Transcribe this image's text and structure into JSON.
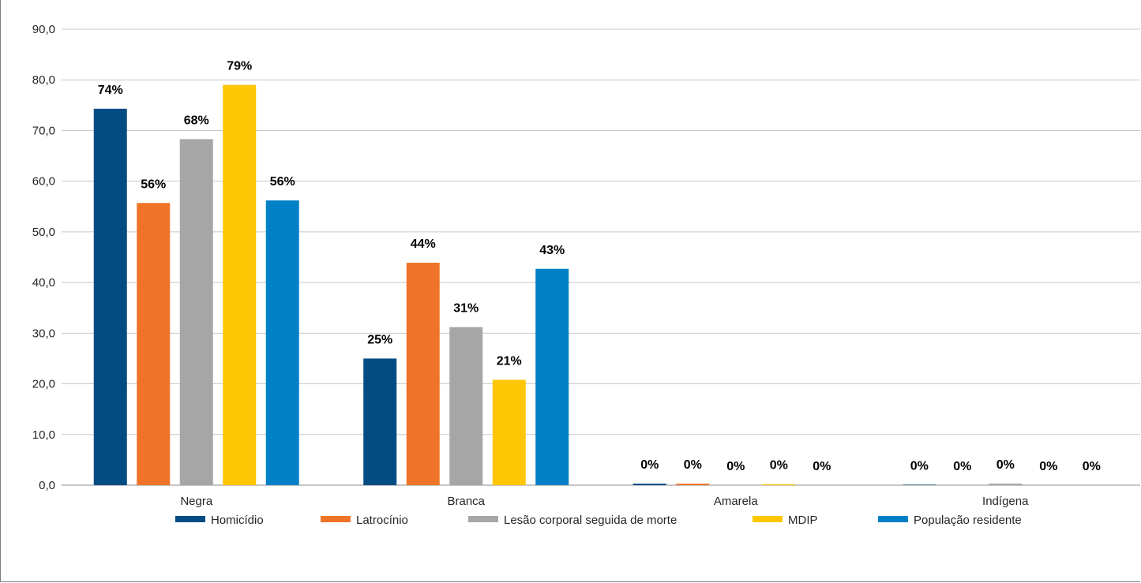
{
  "chart_data": {
    "type": "bar",
    "categories": [
      "Negra",
      "Branca",
      "Amarela",
      "Indígena"
    ],
    "series": [
      {
        "name": "Homicídio",
        "color": "#004C83",
        "values": [
          74.3,
          25.0,
          0.3,
          0.1
        ],
        "labels": [
          "74%",
          "25%",
          "0%",
          "0%"
        ]
      },
      {
        "name": "Latrocínio",
        "color": "#F07427",
        "values": [
          55.7,
          43.9,
          0.3,
          0.0
        ],
        "labels": [
          "56%",
          "44%",
          "0%",
          "0%"
        ]
      },
      {
        "name": "Lesão corporal seguida de morte",
        "color": "#A6A6A6",
        "values": [
          68.3,
          31.2,
          0.0,
          0.3
        ],
        "labels": [
          "68%",
          "31%",
          "0%",
          "0%"
        ]
      },
      {
        "name": "MDIP",
        "color": "#FFC606",
        "values": [
          79.0,
          20.8,
          0.2,
          0.0
        ],
        "labels": [
          "79%",
          "21%",
          "0%",
          "0%"
        ]
      },
      {
        "name": "População residente",
        "color": "#0080C6",
        "values": [
          56.2,
          42.7,
          0.0,
          0.0
        ],
        "labels": [
          "56%",
          "43%",
          "0%",
          "0%"
        ]
      }
    ],
    "y_ticks": [
      "0,0",
      "10,0",
      "20,0",
      "30,0",
      "40,0",
      "50,0",
      "60,0",
      "70,0",
      "80,0",
      "90,0"
    ],
    "ylim": [
      0,
      90
    ],
    "grid": true,
    "legend_position": "bottom"
  }
}
